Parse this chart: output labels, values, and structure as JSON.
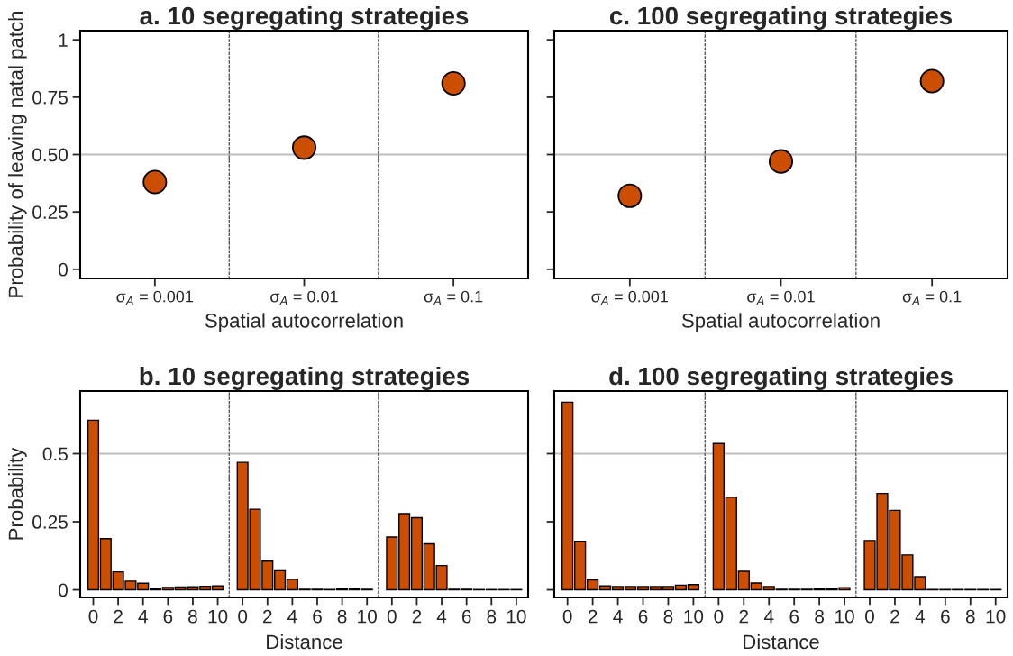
{
  "chart_data": [
    {
      "type": "scatter",
      "ylabel": "Probability of leaving natal patch",
      "categories": [
        "σ$_{A}$ = 0.001"
      ],
      "values": [
        0.38
      ],
      "color": "#cc4e02",
      "marker": "circle",
      "ylim": [
        -0.04,
        1.04
      ],
      "yticks": [
        0,
        0.25,
        {
          "value": 0.5,
          "label": "0.50"
        },
        0.75,
        1
      ],
      "ref_lines": [
        {
          "axis": "y",
          "value": 0.5,
          "color": "#bebebe"
        }
      ],
      "grid": false,
      "legend": false
    },
    {
      "type": "scatter",
      "title": "a. 10 segregating strategies",
      "xlabel": "Spatial autocorrelation",
      "categories": [
        "σ$_{A}$ = 0.01"
      ],
      "values": [
        0.53
      ],
      "color": "#cc4e02",
      "marker": "circle",
      "ylim": [
        -0.04,
        1.04
      ],
      "tick_labels": "x",
      "ref_lines": [
        {
          "axis": "y",
          "value": 0.5,
          "color": "#bebebe"
        }
      ],
      "grid": false,
      "legend": false
    },
    {
      "type": "scatter",
      "categories": [
        "σ$_{A}$ = 0.1"
      ],
      "values": [
        0.81
      ],
      "color": "#cc4e02",
      "marker": "circle",
      "ylim": [
        -0.04,
        1.04
      ],
      "tick_labels": "x",
      "ref_lines": [
        {
          "axis": "y",
          "value": 0.5,
          "color": "#bebebe"
        }
      ],
      "grid": false,
      "legend": false
    },
    {
      "type": "scatter",
      "categories": [
        "σ$_{A}$ = 0.001"
      ],
      "values": [
        0.32
      ],
      "color": "#cc4e02",
      "marker": "circle",
      "ylim": [
        -0.04,
        1.04
      ],
      "yticks": [
        0,
        0.25,
        0.5,
        0.75,
        1
      ],
      "tick_labels": "x",
      "ref_lines": [
        {
          "axis": "y",
          "value": 0.5,
          "color": "#bebebe"
        }
      ],
      "grid": false,
      "legend": false
    },
    {
      "type": "scatter",
      "title": "c. 100 segregating strategies",
      "xlabel": "Spatial autocorrelation",
      "categories": [
        "σ$_{A}$ = 0.01"
      ],
      "values": [
        0.47
      ],
      "color": "#cc4e02",
      "marker": "circle",
      "ylim": [
        -0.04,
        1.04
      ],
      "tick_labels": "x",
      "ref_lines": [
        {
          "axis": "y",
          "value": 0.5,
          "color": "#bebebe"
        }
      ],
      "grid": false,
      "legend": false
    },
    {
      "type": "scatter",
      "categories": [
        "σ$_{A}$ = 0.1"
      ],
      "values": [
        0.82
      ],
      "color": "#cc4e02",
      "marker": "circle",
      "ylim": [
        -0.04,
        1.04
      ],
      "tick_labels": "x",
      "ref_lines": [
        {
          "axis": "y",
          "value": 0.5,
          "color": "#bebebe"
        }
      ],
      "grid": false,
      "legend": false
    },
    {
      "type": "bar",
      "ylabel": "Probability",
      "categories": [
        "0",
        null,
        "2",
        null,
        "4",
        null,
        "6",
        null,
        "8",
        null,
        "10"
      ],
      "values": [
        0.623,
        0.188,
        0.066,
        0.032,
        0.024,
        0.005,
        0.009,
        0.01,
        0.011,
        0.013,
        0.014
      ],
      "color": "#cc4e02",
      "ylim": [
        -0.028,
        0.73
      ],
      "yticks": [
        0,
        0.25,
        0.5
      ],
      "ref_lines": [
        {
          "axis": "y",
          "value": 0.5,
          "color": "#bebebe"
        }
      ],
      "grid": false,
      "legend": false
    },
    {
      "type": "bar",
      "title": "b. 10 segregating strategies",
      "xlabel": "Distance",
      "categories": [
        "0",
        null,
        "2",
        null,
        "4",
        null,
        "6",
        null,
        "8",
        null,
        "10"
      ],
      "values": [
        0.468,
        0.296,
        0.105,
        0.07,
        0.039,
        0.002,
        0.002,
        0.001,
        0.004,
        0.005,
        0.002
      ],
      "color": "#cc4e02",
      "ylim": [
        -0.028,
        0.73
      ],
      "tick_labels": "x",
      "ref_lines": [
        {
          "axis": "y",
          "value": 0.5,
          "color": "#bebebe"
        }
      ],
      "grid": false,
      "legend": false
    },
    {
      "type": "bar",
      "categories": [
        "0",
        null,
        "2",
        null,
        "4",
        null,
        "6",
        null,
        "8",
        null,
        "10"
      ],
      "values": [
        0.194,
        0.28,
        0.265,
        0.169,
        0.089,
        0.002,
        0.002,
        0.001,
        0.001,
        0.001,
        0.001
      ],
      "color": "#cc4e02",
      "ylim": [
        -0.028,
        0.73
      ],
      "tick_labels": "x",
      "ref_lines": [
        {
          "axis": "y",
          "value": 0.5,
          "color": "#bebebe"
        }
      ],
      "grid": false,
      "legend": false
    },
    {
      "type": "bar",
      "categories": [
        "0",
        null,
        "2",
        null,
        "4",
        null,
        "6",
        null,
        "8",
        null,
        "10"
      ],
      "values": [
        0.689,
        0.178,
        0.036,
        0.014,
        0.012,
        0.012,
        0.012,
        0.012,
        0.012,
        0.017,
        0.019
      ],
      "color": "#cc4e02",
      "ylim": [
        -0.028,
        0.73
      ],
      "yticks": [
        0,
        0.25,
        0.5
      ],
      "tick_labels": "x",
      "ref_lines": [
        {
          "axis": "y",
          "value": 0.5,
          "color": "#bebebe"
        }
      ],
      "grid": false,
      "legend": false
    },
    {
      "type": "bar",
      "title": "d. 100 segregating strategies",
      "xlabel": "Distance",
      "categories": [
        "0",
        null,
        "2",
        null,
        "4",
        null,
        "6",
        null,
        "8",
        null,
        "10"
      ],
      "values": [
        0.537,
        0.34,
        0.068,
        0.025,
        0.012,
        0.002,
        0.002,
        0.002,
        0.003,
        0.003,
        0.008
      ],
      "color": "#cc4e02",
      "ylim": [
        -0.028,
        0.73
      ],
      "tick_labels": "x",
      "ref_lines": [
        {
          "axis": "y",
          "value": 0.5,
          "color": "#bebebe"
        }
      ],
      "grid": false,
      "legend": false
    },
    {
      "type": "bar",
      "categories": [
        "0",
        null,
        "2",
        null,
        "4",
        null,
        "6",
        null,
        "8",
        null,
        "10"
      ],
      "values": [
        0.181,
        0.354,
        0.292,
        0.128,
        0.048,
        0.001,
        0.001,
        0.001,
        0.001,
        0.001,
        0.001
      ],
      "color": "#cc4e02",
      "ylim": [
        -0.028,
        0.73
      ],
      "tick_labels": "x",
      "ref_lines": [
        {
          "axis": "y",
          "value": 0.5,
          "color": "#bebebe"
        }
      ],
      "grid": false,
      "legend": false
    }
  ]
}
